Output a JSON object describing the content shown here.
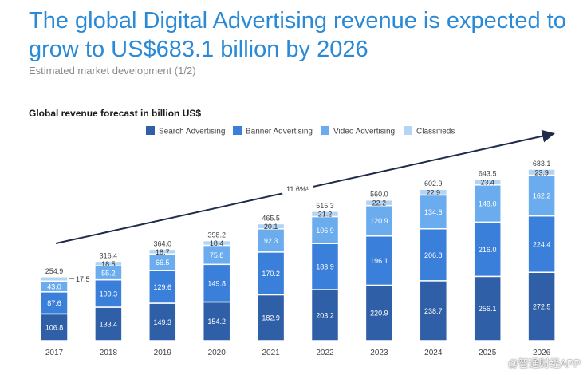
{
  "headline": "The global Digital Advertising revenue is expected to grow to US$683.1 billion by 2026",
  "subtitle": "Estimated market development (1/2)",
  "watermark": "@智通财经APP",
  "chart_data": {
    "type": "bar",
    "stacked": true,
    "title": "Global revenue forecast in billion US$",
    "xlabel": "",
    "ylabel": "",
    "ylim": [
      0,
      700
    ],
    "grid": false,
    "legend_position": "top",
    "categories": [
      "2017",
      "2018",
      "2019",
      "2020",
      "2021",
      "2022",
      "2023",
      "2024",
      "2025",
      "2026"
    ],
    "series": [
      {
        "name": "Search Advertising",
        "color": "#2f5fa6",
        "values": [
          106.8,
          133.4,
          149.3,
          154.2,
          182.9,
          203.2,
          220.9,
          238.7,
          256.1,
          272.5
        ]
      },
      {
        "name": "Banner Advertising",
        "color": "#3a7fd9",
        "values": [
          87.6,
          109.3,
          129.6,
          149.8,
          170.2,
          183.9,
          196.1,
          206.8,
          216.0,
          224.4
        ]
      },
      {
        "name": "Video Advertising",
        "color": "#6aaced",
        "values": [
          43.0,
          55.2,
          66.5,
          75.8,
          92.3,
          106.9,
          120.9,
          134.6,
          148.0,
          162.2
        ]
      },
      {
        "name": "Classifieds",
        "color": "#b3d4f3",
        "values": [
          17.5,
          18.5,
          18.7,
          18.4,
          20.1,
          21.2,
          22.2,
          22.9,
          23.4,
          23.9
        ]
      }
    ],
    "totals": [
      254.9,
      316.4,
      364.0,
      398.2,
      465.5,
      515.3,
      560.0,
      602.9,
      643.5,
      683.1
    ],
    "annotations": [
      {
        "text": "11.6%¹",
        "type": "trend-arrow-label"
      }
    ]
  }
}
